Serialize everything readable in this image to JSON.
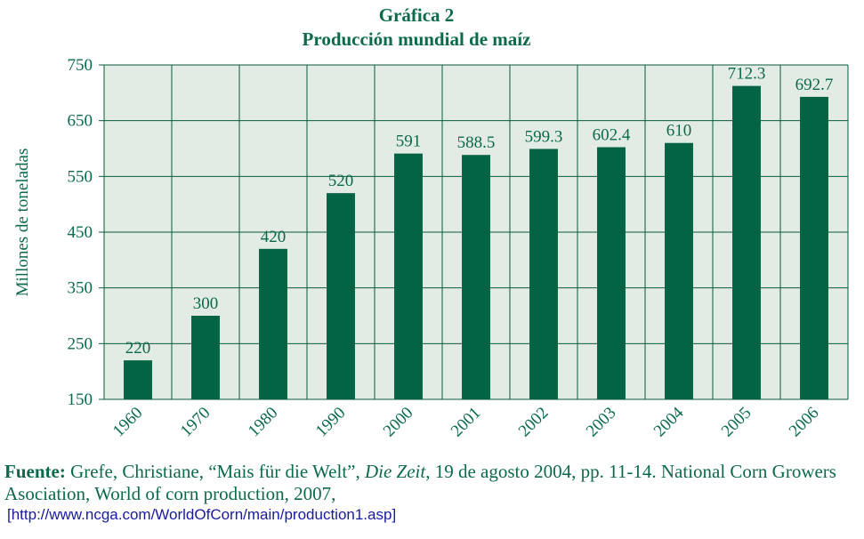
{
  "chart_data": {
    "type": "bar",
    "title": "Gráfica 2",
    "subtitle": "Producción mundial de maíz",
    "xlabel": "",
    "ylabel": "Millones de toneladas",
    "ylim": [
      150,
      750
    ],
    "yticks": [
      150,
      250,
      350,
      450,
      550,
      650,
      750
    ],
    "grid": true,
    "categories": [
      "1960",
      "1970",
      "1980",
      "1990",
      "2000",
      "2001",
      "2002",
      "2003",
      "2004",
      "2005",
      "2006"
    ],
    "values": [
      220,
      300,
      420,
      520,
      591,
      588.5,
      599.3,
      602.4,
      610,
      712.3,
      692.7
    ],
    "value_labels": [
      "220",
      "300",
      "420",
      "520",
      "591",
      "588.5",
      "599.3",
      "602.4",
      "610",
      "712.3",
      "692.7"
    ],
    "colors": {
      "bar": "#036345",
      "plot_bg": "#e2ebe4",
      "grid": "#0b5a3c",
      "text": "#0b6a4c"
    }
  },
  "source": {
    "label": "Fuente:",
    "text_part1": " Grefe, Christiane, “Mais für die Welt”, ",
    "publication": "Die Zeit",
    "text_part2": ", 19 de agosto 2004, pp. 11-14. National Corn Growers Asociation, World of corn production, 2007,",
    "url": "[http://www.ncga.com/WorldOfCorn/main/production1.asp]"
  }
}
